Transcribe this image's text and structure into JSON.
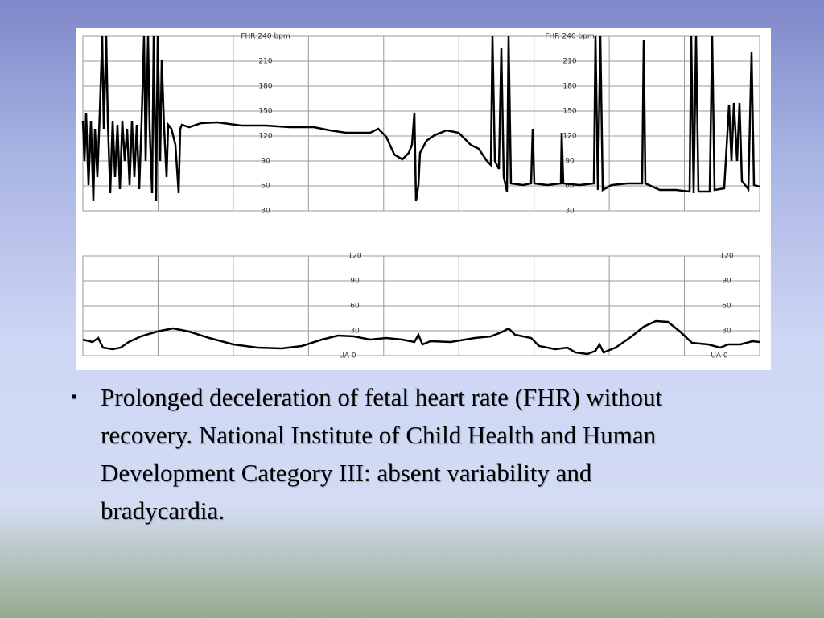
{
  "figure": {
    "fhr_axes": [
      {
        "title": "FHR 240 bpm",
        "ylim": [
          30,
          240
        ],
        "ticks": [
          210,
          180,
          150,
          120,
          90,
          60,
          30
        ]
      },
      {
        "title": "FHR 240 bpm",
        "ylim": [
          30,
          240
        ],
        "ticks": [
          210,
          180,
          150,
          120,
          90,
          60,
          30
        ]
      }
    ],
    "ua_axes": [
      {
        "ylim": [
          0,
          120
        ],
        "ticks": [
          120,
          90,
          60,
          30
        ],
        "zero_label": "UA 0"
      },
      {
        "ylim": [
          0,
          120
        ],
        "ticks": [
          120,
          90,
          60,
          30
        ],
        "zero_label": "UA 0"
      }
    ]
  },
  "bullets": [
    "Prolonged deceleration of fetal heart rate (FHR) without recovery. National Institute of Child Health and Human Development Category III: absent variability and bradycardia."
  ]
}
